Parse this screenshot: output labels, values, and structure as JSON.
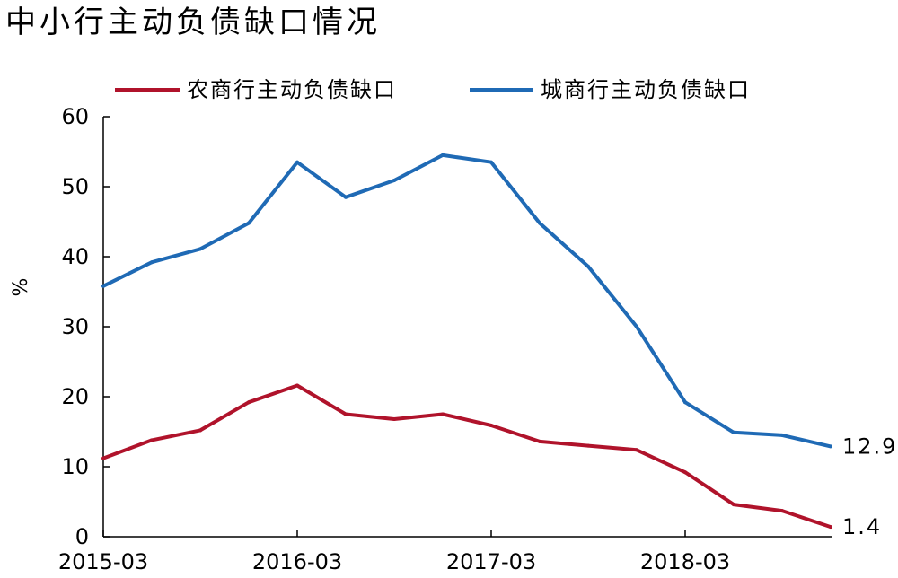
{
  "chart_data": {
    "type": "line",
    "title": "中小行主动负债缺口情况",
    "xlabel": "",
    "ylabel": "%",
    "ylim": [
      0,
      60
    ],
    "yticks": [
      "0",
      "10",
      "20",
      "30",
      "40",
      "50",
      "60"
    ],
    "x": [
      "2015-03",
      "2015-06",
      "2015-09",
      "2015-12",
      "2016-03",
      "2016-06",
      "2016-09",
      "2016-12",
      "2017-03",
      "2017-06",
      "2017-09",
      "2017-12",
      "2018-03",
      "2018-06",
      "2018-09",
      "2018-12"
    ],
    "xticks": [
      "2015-03",
      "2016-03",
      "2017-03",
      "2018-03"
    ],
    "legend_position": "top",
    "grid": false,
    "series": [
      {
        "name": "农商行主动负债缺口",
        "color": "#b0132b",
        "values": [
          11.2,
          13.8,
          15.2,
          19.2,
          21.6,
          17.5,
          16.8,
          17.5,
          15.9,
          13.6,
          13.0,
          12.4,
          9.2,
          4.6,
          3.7,
          1.4
        ],
        "end_label": "1.4"
      },
      {
        "name": "城商行主动负债缺口",
        "color": "#1f6ab5",
        "values": [
          35.8,
          39.2,
          41.1,
          44.8,
          53.5,
          48.5,
          50.9,
          54.5,
          53.5,
          44.8,
          38.6,
          30.0,
          19.2,
          14.9,
          14.5,
          12.9
        ],
        "end_label": "12.9"
      }
    ]
  }
}
